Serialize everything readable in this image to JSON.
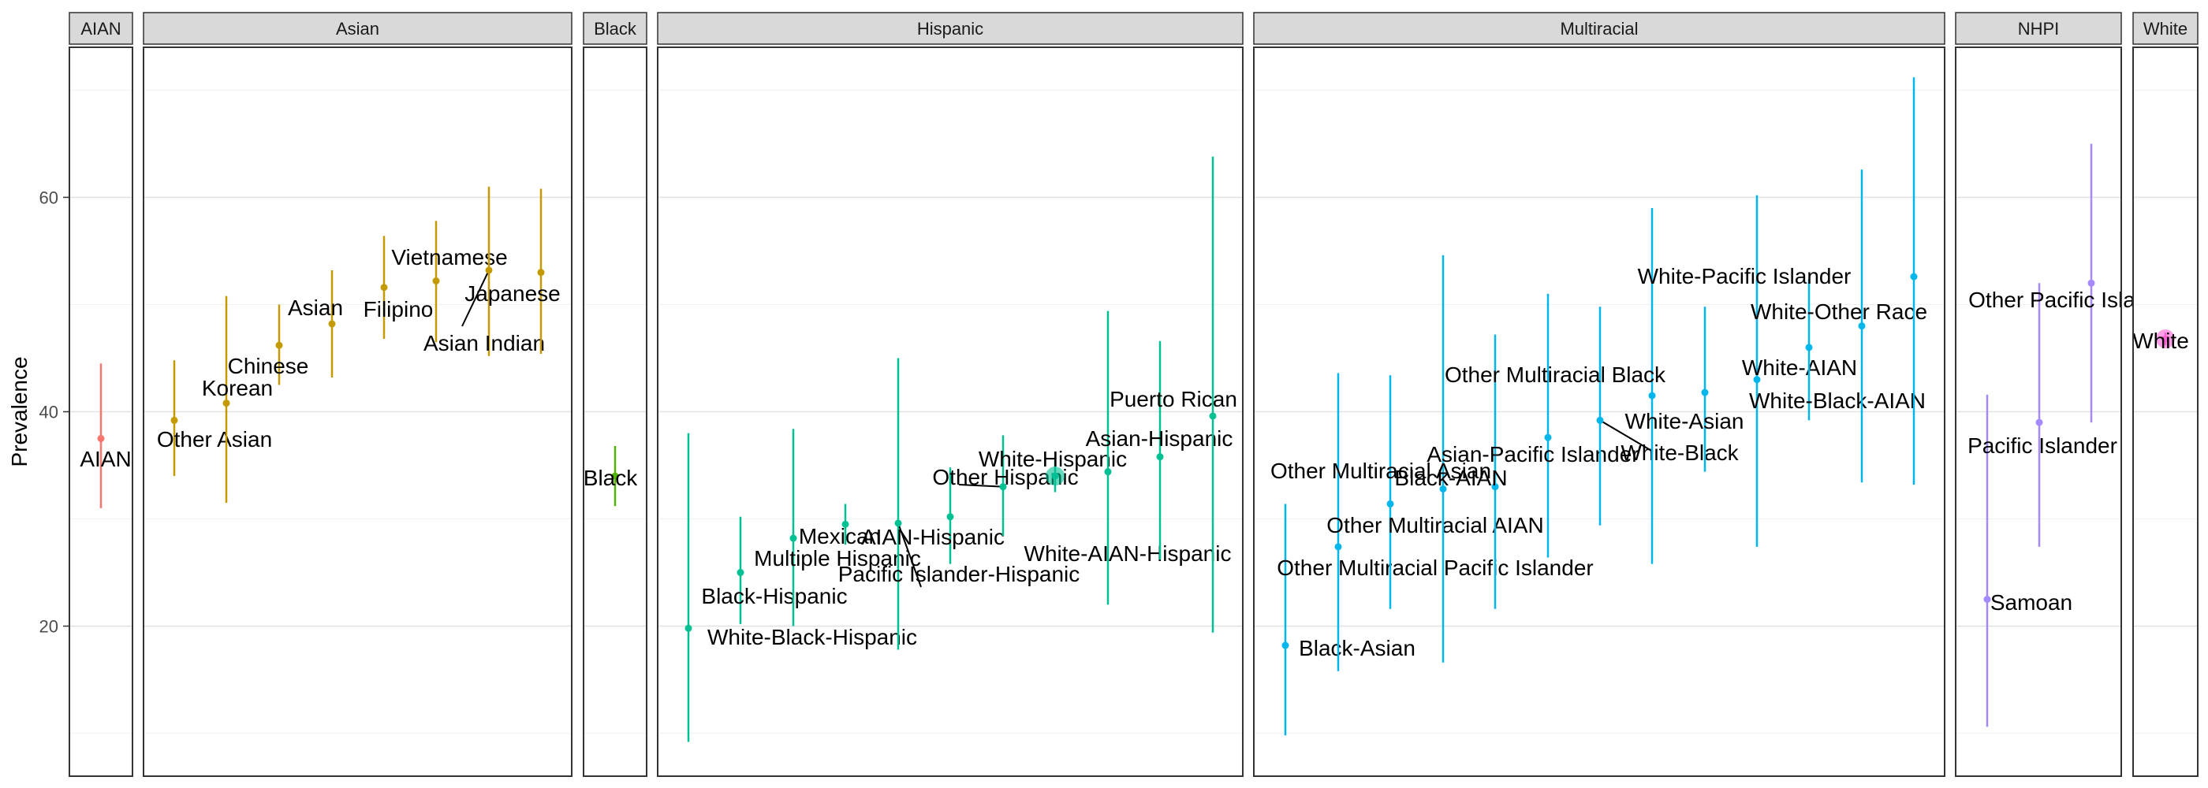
{
  "chart_data": {
    "type": "scatter",
    "title": "",
    "xlabel": "",
    "ylabel": "Prevalence",
    "ylim": [
      6,
      74
    ],
    "yticks": [
      20,
      40,
      60
    ],
    "grid": true,
    "facets": [
      {
        "name": "AIAN",
        "color": "#F8766D",
        "points": [
          {
            "label": "AIAN",
            "y": 37.5,
            "lo": 31.0,
            "hi": 44.5
          }
        ]
      },
      {
        "name": "Asian",
        "color": "#C49A00",
        "points": [
          {
            "label": "Other Asian",
            "y": 39.2,
            "lo": 34.0,
            "hi": 44.8
          },
          {
            "label": "Korean",
            "y": 40.8,
            "lo": 31.5,
            "hi": 50.8
          },
          {
            "label": "Chinese",
            "y": 46.2,
            "lo": 42.5,
            "hi": 50.0
          },
          {
            "label": "Asian",
            "y": 48.2,
            "lo": 43.2,
            "hi": 53.2
          },
          {
            "label": "Filipino",
            "y": 51.6,
            "lo": 46.8,
            "hi": 56.4
          },
          {
            "label": "Vietnamese",
            "y": 52.2,
            "lo": 46.5,
            "hi": 57.8
          },
          {
            "label": "Asian Indian",
            "y": 53.2,
            "lo": 45.2,
            "hi": 61.0
          },
          {
            "label": "Japanese",
            "y": 53.0,
            "lo": 45.4,
            "hi": 60.8
          }
        ]
      },
      {
        "name": "Black",
        "color": "#53B400",
        "points": [
          {
            "label": "Black",
            "y": 34.0,
            "lo": 31.2,
            "hi": 36.8
          }
        ]
      },
      {
        "name": "Hispanic",
        "color": "#00C094",
        "points": [
          {
            "label": "White-Black-Hispanic",
            "y": 19.8,
            "lo": 9.2,
            "hi": 38.0
          },
          {
            "label": "Black-Hispanic",
            "y": 25.0,
            "lo": 20.2,
            "hi": 30.2
          },
          {
            "label": "Multiple Hispanic",
            "y": 28.2,
            "lo": 20.0,
            "hi": 38.4
          },
          {
            "label": "Mexican",
            "y": 29.5,
            "lo": 27.6,
            "hi": 31.4
          },
          {
            "label": "Pacific Islander-Hispanic",
            "y": 29.6,
            "lo": 17.8,
            "hi": 45.0
          },
          {
            "label": "AIAN-Hispanic",
            "y": 30.2,
            "lo": 25.8,
            "hi": 34.8
          },
          {
            "label": "Other Hispanic",
            "y": 33.0,
            "lo": 28.4,
            "hi": 37.8
          },
          {
            "label": "White-Hispanic",
            "y": 34.0,
            "lo": 32.5,
            "hi": 35.5
          },
          {
            "label": "White-AIAN-Hispanic",
            "y": 34.4,
            "lo": 22.0,
            "hi": 49.4
          },
          {
            "label": "Asian-Hispanic",
            "y": 35.8,
            "lo": 26.2,
            "hi": 46.6
          },
          {
            "label": "Puerto Rican",
            "y": 39.6,
            "lo": 19.4,
            "hi": 63.8
          }
        ]
      },
      {
        "name": "Multiracial",
        "color": "#00B6EB",
        "points": [
          {
            "label": "Black-Asian",
            "y": 18.2,
            "lo": 9.8,
            "hi": 31.4
          },
          {
            "label": "Other Multiracial Pacific Islander",
            "y": 27.4,
            "lo": 15.8,
            "hi": 43.6
          },
          {
            "label": "Other Multiracial AIAN",
            "y": 31.4,
            "lo": 21.6,
            "hi": 43.4
          },
          {
            "label": "Other Multiracial Asian",
            "y": 32.8,
            "lo": 16.6,
            "hi": 54.6
          },
          {
            "label": "Black-AIAN",
            "y": 33.0,
            "lo": 21.6,
            "hi": 47.2
          },
          {
            "label": "Asian-Pacific Islander",
            "y": 37.6,
            "lo": 26.4,
            "hi": 51.0
          },
          {
            "label": "White-Black",
            "y": 39.2,
            "lo": 29.4,
            "hi": 49.8
          },
          {
            "label": "Other Multiracial Black",
            "y": 41.5,
            "lo": 25.8,
            "hi": 59.0
          },
          {
            "label": "White-Asian",
            "y": 41.8,
            "lo": 34.4,
            "hi": 49.8
          },
          {
            "label": "White-AIAN",
            "y": 43.0,
            "lo": 27.4,
            "hi": 60.2
          },
          {
            "label": "White-Black-AIAN",
            "y": 46.0,
            "lo": 39.2,
            "hi": 52.4
          },
          {
            "label": "White-Other Race",
            "y": 48.0,
            "lo": 33.4,
            "hi": 62.6
          },
          {
            "label": "White-Pacific Islander",
            "y": 52.6,
            "lo": 33.2,
            "hi": 71.2
          }
        ]
      },
      {
        "name": "NHPI",
        "color": "#A58AFF",
        "points": [
          {
            "label": "Samoan",
            "y": 22.5,
            "lo": 10.6,
            "hi": 41.6
          },
          {
            "label": "Pacific Islander",
            "y": 39.0,
            "lo": 27.4,
            "hi": 52.0
          },
          {
            "label": "Other Pacific Islander",
            "y": 52.0,
            "lo": 39.0,
            "hi": 65.0
          }
        ]
      },
      {
        "name": "White",
        "color": "#FB61D7",
        "points": [
          {
            "label": "White",
            "y": 46.8,
            "lo": 46.2,
            "hi": 47.4
          }
        ]
      }
    ]
  }
}
